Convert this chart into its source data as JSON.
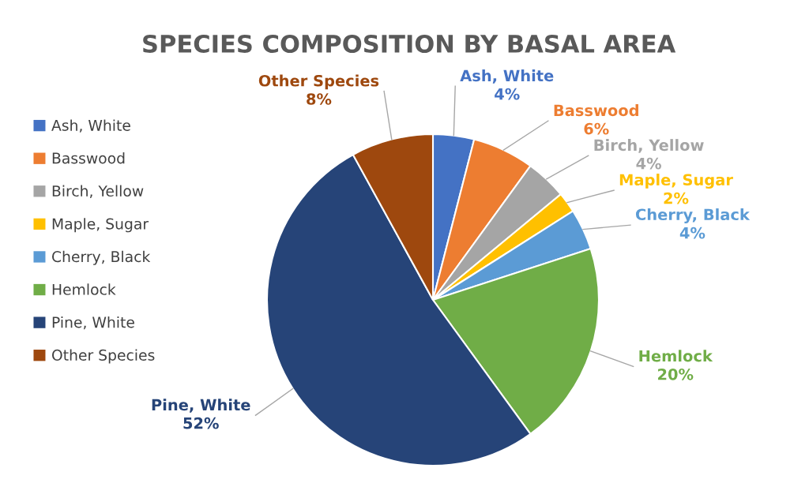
{
  "chart_data": {
    "type": "pie",
    "title": "SPECIES COMPOSITION BY BASAL AREA",
    "categories": [
      "Ash, White",
      "Basswood",
      "Birch, Yellow",
      "Maple, Sugar",
      "Cherry, Black",
      "Hemlock",
      "Pine, White",
      "Other Species"
    ],
    "values": [
      4,
      6,
      4,
      2,
      4,
      20,
      52,
      8
    ],
    "value_labels": [
      "4%",
      "6%",
      "4%",
      "2%",
      "4%",
      "20%",
      "52%",
      "8%"
    ],
    "colors": [
      "#4472c4",
      "#ed7d31",
      "#a5a5a5",
      "#ffc000",
      "#5b9bd5",
      "#70ad47",
      "#264478",
      "#9e480e"
    ],
    "legend": "left"
  }
}
